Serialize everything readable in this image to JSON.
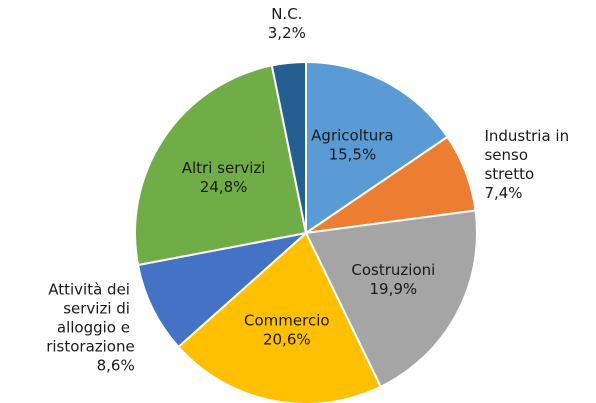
{
  "chart_data": {
    "type": "pie",
    "categories": [
      "Agricoltura",
      "Industria in senso stretto",
      "Costruzioni",
      "Commercio",
      "Attività dei servizi di alloggio e ristorazione",
      "Altri servizi",
      "N.C."
    ],
    "values": [
      15.5,
      7.4,
      19.9,
      20.6,
      8.6,
      24.8,
      3.2
    ],
    "value_labels": [
      "15,5%",
      "7,4%",
      "19,9%",
      "20,6%",
      "8,6%",
      "24,8%",
      "3,2%"
    ],
    "colors": [
      "#5b9bd5",
      "#ed7d31",
      "#a5a5a5",
      "#ffc000",
      "#4472c4",
      "#70ad47",
      "#255e91"
    ]
  }
}
